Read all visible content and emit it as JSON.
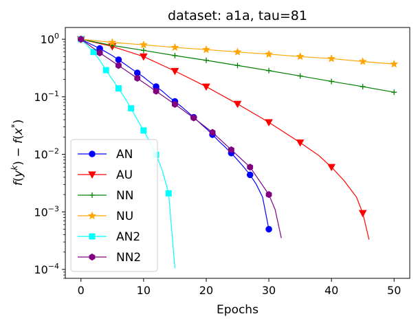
{
  "chart_data": {
    "type": "line",
    "title": "dataset: a1a, tau=81",
    "xlabel": "Epochs",
    "ylabel": "f(y^k) − f(x*)",
    "xscale": "linear",
    "yscale": "log",
    "xlim": [
      -2.5,
      52.5
    ],
    "ylim": [
      7e-05,
      1.6
    ],
    "xticks": [
      0,
      10,
      20,
      30,
      40,
      50
    ],
    "xtick_labels": [
      "0",
      "10",
      "20",
      "30",
      "40",
      "50"
    ],
    "yticks": [
      0.0001,
      0.001,
      0.01,
      0.1,
      1
    ],
    "ytick_labels": [
      {
        "base": "10",
        "exp": "−4"
      },
      {
        "base": "10",
        "exp": "−3"
      },
      {
        "base": "10",
        "exp": "−2"
      },
      {
        "base": "10",
        "exp": "−1"
      },
      {
        "base": "10",
        "exp": "0"
      }
    ],
    "legend_position": "lower-left",
    "series": [
      {
        "name": "AN",
        "color": "#0000ff",
        "marker": "circle",
        "x": [
          0,
          1,
          2,
          3,
          4,
          5,
          6,
          7,
          8,
          9,
          10,
          11,
          12,
          13,
          14,
          15,
          16,
          17,
          18,
          19,
          20,
          21,
          22,
          23,
          24,
          25,
          26,
          27,
          28,
          29,
          30
        ],
        "y": [
          1.0,
          0.88,
          0.78,
          0.69,
          0.6,
          0.52,
          0.44,
          0.37,
          0.31,
          0.26,
          0.22,
          0.18,
          0.15,
          0.125,
          0.1,
          0.083,
          0.068,
          0.055,
          0.044,
          0.035,
          0.028,
          0.022,
          0.017,
          0.0135,
          0.0105,
          0.008,
          0.006,
          0.0044,
          0.003,
          0.0018,
          0.0005
        ],
        "marker_x": [
          0,
          3,
          6,
          9,
          12,
          15,
          18,
          21,
          24,
          27,
          30
        ]
      },
      {
        "name": "AU",
        "color": "#ff0000",
        "marker": "triangle-down",
        "x": [
          0,
          5,
          10,
          15,
          20,
          25,
          30,
          35,
          38,
          40,
          42,
          44,
          45,
          46
        ],
        "y": [
          1.0,
          0.75,
          0.5,
          0.28,
          0.15,
          0.075,
          0.036,
          0.016,
          0.0095,
          0.006,
          0.0035,
          0.0018,
          0.00095,
          0.00033
        ],
        "marker_x": [
          0,
          5,
          10,
          15,
          20,
          25,
          30,
          35,
          40,
          45
        ]
      },
      {
        "name": "NN",
        "color": "#008000",
        "marker": "plus",
        "x": [
          0,
          5,
          10,
          15,
          20,
          25,
          30,
          35,
          40,
          45,
          50
        ],
        "y": [
          1.0,
          0.78,
          0.64,
          0.52,
          0.43,
          0.35,
          0.285,
          0.23,
          0.185,
          0.15,
          0.12
        ],
        "marker_x": [
          0,
          5,
          10,
          15,
          20,
          25,
          30,
          35,
          40,
          45,
          50
        ]
      },
      {
        "name": "NU",
        "color": "#ffa500",
        "marker": "star",
        "x": [
          0,
          5,
          10,
          15,
          20,
          25,
          30,
          35,
          40,
          45,
          50
        ],
        "y": [
          1.0,
          0.88,
          0.8,
          0.72,
          0.66,
          0.6,
          0.55,
          0.5,
          0.46,
          0.41,
          0.37
        ],
        "marker_x": [
          0,
          5,
          10,
          15,
          20,
          25,
          30,
          35,
          40,
          45,
          50
        ]
      },
      {
        "name": "AN2",
        "color": "#00ffff",
        "marker": "square",
        "x": [
          0,
          1,
          2,
          3,
          4,
          5,
          6,
          7,
          8,
          9,
          10,
          11,
          12,
          13,
          14,
          15
        ],
        "y": [
          1.0,
          0.78,
          0.6,
          0.43,
          0.29,
          0.2,
          0.14,
          0.095,
          0.063,
          0.04,
          0.026,
          0.0165,
          0.0098,
          0.0052,
          0.0021,
          0.000105
        ],
        "marker_x": [
          0,
          2,
          4,
          6,
          8,
          10,
          12,
          14
        ]
      },
      {
        "name": "NN2",
        "color": "#800080",
        "marker": "hexagon",
        "x": [
          0,
          3,
          6,
          9,
          12,
          15,
          18,
          21,
          24,
          27,
          30,
          31,
          32
        ],
        "y": [
          1.0,
          0.58,
          0.35,
          0.21,
          0.125,
          0.074,
          0.043,
          0.024,
          0.012,
          0.006,
          0.002,
          0.0011,
          0.00035
        ],
        "marker_x": [
          0,
          3,
          6,
          9,
          12,
          15,
          18,
          21,
          24,
          27,
          30
        ]
      }
    ]
  }
}
